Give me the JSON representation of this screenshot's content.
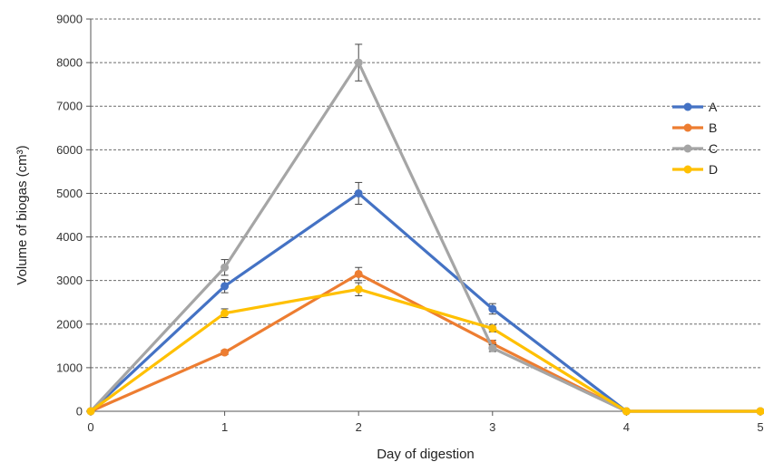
{
  "chart_data": {
    "type": "line",
    "title": "",
    "xlabel": "Day of digestion",
    "ylabel": "Volume of biogas (cm³)",
    "x": [
      0,
      1,
      2,
      3,
      4,
      5
    ],
    "x_tick_labels": [
      "0",
      "1",
      "2",
      "3",
      "4",
      "5"
    ],
    "xlim": [
      0,
      5
    ],
    "ylim": [
      0,
      9000
    ],
    "y_ticks": [
      0,
      1000,
      2000,
      3000,
      4000,
      5000,
      6000,
      7000,
      8000,
      9000
    ],
    "y_tick_labels": [
      "0",
      "1000",
      "2000",
      "3000",
      "4000",
      "5000",
      "6000",
      "7000",
      "8000",
      "9000"
    ],
    "grid": "horizontal dashed",
    "legend_position": "top-right",
    "series": [
      {
        "name": "A",
        "color": "#4472C4",
        "values": [
          0,
          2870,
          5000,
          2350,
          0,
          0
        ],
        "errors": [
          0,
          150,
          250,
          120,
          0,
          0
        ]
      },
      {
        "name": "B",
        "color": "#ED7D31",
        "values": [
          0,
          1350,
          3150,
          1550,
          0,
          0
        ],
        "errors": [
          0,
          50,
          150,
          80,
          0,
          0
        ]
      },
      {
        "name": "C",
        "color": "#A5A5A5",
        "values": [
          0,
          3300,
          8000,
          1450,
          0,
          0
        ],
        "errors": [
          0,
          180,
          420,
          80,
          0,
          0
        ]
      },
      {
        "name": "D",
        "color": "#FFC000",
        "values": [
          0,
          2250,
          2800,
          1900,
          0,
          0
        ],
        "errors": [
          0,
          100,
          150,
          80,
          0,
          0
        ]
      }
    ]
  }
}
